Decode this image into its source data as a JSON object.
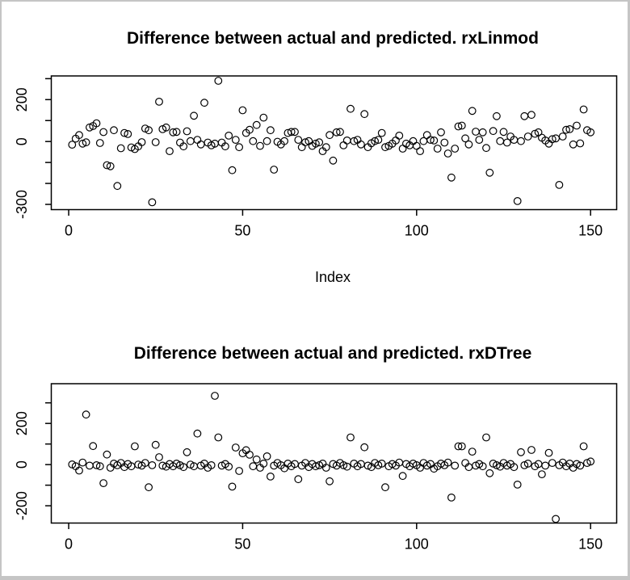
{
  "window": {
    "background": "#ffffff",
    "frame_color": "#c5c5c5",
    "marker": {
      "shape": "open-circle",
      "color": "#000000"
    }
  },
  "chart_data": [
    {
      "type": "scatter",
      "title": "Difference between actual and predicted. rxLinmod",
      "xlabel": "Index",
      "ylabel": "",
      "legend": "none",
      "grid": false,
      "x_ticks": [
        0,
        50,
        100,
        150
      ],
      "y_ticks": [
        300,
        200,
        100,
        0,
        -100,
        -200,
        -300
      ],
      "y_tick_labels": [
        "",
        "200",
        "",
        "0",
        "",
        "",
        "-300"
      ],
      "xlim": [
        -5,
        157.5
      ],
      "ylim": [
        -325,
        313
      ],
      "x_start": 1,
      "values": [
        -15,
        14,
        31,
        -10,
        -4,
        67,
        74,
        87,
        -7,
        45,
        -113,
        -118,
        54,
        -212,
        -32,
        41,
        36,
        -28,
        -36,
        -23,
        -3,
        62,
        54,
        -290,
        -3,
        190,
        59,
        67,
        -46,
        44,
        46,
        -5,
        -23,
        49,
        2,
        123,
        8,
        -14,
        185,
        -5,
        -18,
        -10,
        290,
        -5,
        -23,
        28,
        -137,
        8,
        -27,
        149,
        41,
        56,
        2,
        79,
        -21,
        114,
        2,
        54,
        -134,
        -1,
        -14,
        2,
        41,
        46,
        46,
        8,
        -27,
        -4,
        2,
        -21,
        -10,
        -4,
        -46,
        -27,
        31,
        -91,
        44,
        46,
        -18,
        5,
        156,
        2,
        8,
        -14,
        131,
        -27,
        -8,
        2,
        8,
        41,
        -27,
        -21,
        -10,
        5,
        28,
        -34,
        -10,
        -18,
        2,
        -21,
        -46,
        2,
        31,
        8,
        5,
        -34,
        44,
        -5,
        -57,
        -172,
        -34,
        72,
        76,
        15,
        -14,
        146,
        47,
        8,
        44,
        -31,
        -149,
        50,
        121,
        2,
        46,
        -5,
        24,
        8,
        -284,
        2,
        121,
        24,
        127,
        37,
        44,
        18,
        5,
        -10,
        11,
        15,
        -207,
        24,
        56,
        59,
        -14,
        76,
        -9,
        153,
        54,
        44
      ]
    },
    {
      "type": "scatter",
      "title": "Difference between actual and predicted. rxDTree",
      "xlabel": "",
      "ylabel": "",
      "legend": "none",
      "grid": false,
      "x_ticks": [
        0,
        50,
        100,
        150
      ],
      "y_ticks": [
        300,
        200,
        100,
        0,
        -100,
        -200
      ],
      "y_tick_labels": [
        "",
        "200",
        "",
        "0",
        "",
        "-200"
      ],
      "xlim": [
        -5,
        157.5
      ],
      "ylim": [
        -284,
        393
      ],
      "x_start": 1,
      "values": [
        1,
        -8,
        -29,
        10,
        243,
        -5,
        90,
        -3,
        -8,
        -90,
        49,
        -15,
        5,
        -3,
        8,
        -12,
        3,
        -8,
        89,
        0,
        -5,
        8,
        -110,
        -3,
        96,
        36,
        -5,
        -10,
        3,
        -8,
        5,
        -3,
        -12,
        60,
        0,
        -8,
        151,
        -5,
        5,
        -15,
        -3,
        334,
        132,
        -5,
        3,
        -10,
        -107,
        83,
        -31,
        55,
        70,
        48,
        -8,
        25,
        -15,
        5,
        40,
        -58,
        -5,
        8,
        -3,
        -18,
        5,
        -8,
        3,
        -71,
        -5,
        8,
        -12,
        3,
        -8,
        -3,
        5,
        -15,
        -81,
        3,
        -5,
        8,
        -3,
        -10,
        132,
        5,
        -8,
        3,
        84,
        -5,
        -12,
        8,
        -3,
        5,
        -110,
        -8,
        3,
        -5,
        10,
        -55,
        3,
        -8,
        5,
        -3,
        -15,
        8,
        -5,
        3,
        -20,
        -8,
        5,
        -3,
        10,
        -160,
        -5,
        89,
        89,
        8,
        -12,
        63,
        -5,
        3,
        -8,
        132,
        -42,
        5,
        -3,
        -10,
        8,
        -5,
        3,
        -12,
        -97,
        60,
        -3,
        5,
        71,
        -8,
        3,
        -47,
        -5,
        57,
        8,
        -264,
        -3,
        10,
        -8,
        5,
        -15,
        3,
        -5,
        89,
        8,
        15
      ]
    }
  ]
}
